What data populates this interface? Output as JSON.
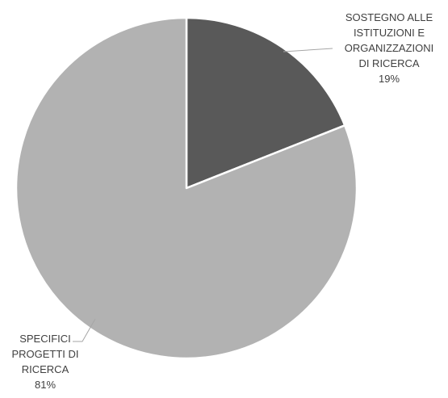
{
  "chart_data": {
    "type": "pie",
    "slices": [
      {
        "label_lines": [
          "SOSTEGNO ALLE",
          "ISTITUZIONI E",
          "ORGANIZZAZIONI",
          "DI RICERCA"
        ],
        "percent_label": "19%",
        "value": 19,
        "color": "#595959"
      },
      {
        "label_lines": [
          "SPECIFICI",
          "PROGETTI DI",
          "RICERCA"
        ],
        "percent_label": "81%",
        "value": 81,
        "color": "#b2b2b2"
      }
    ],
    "start_angle_deg": 0,
    "direction": "clockwise",
    "legend": "none"
  }
}
